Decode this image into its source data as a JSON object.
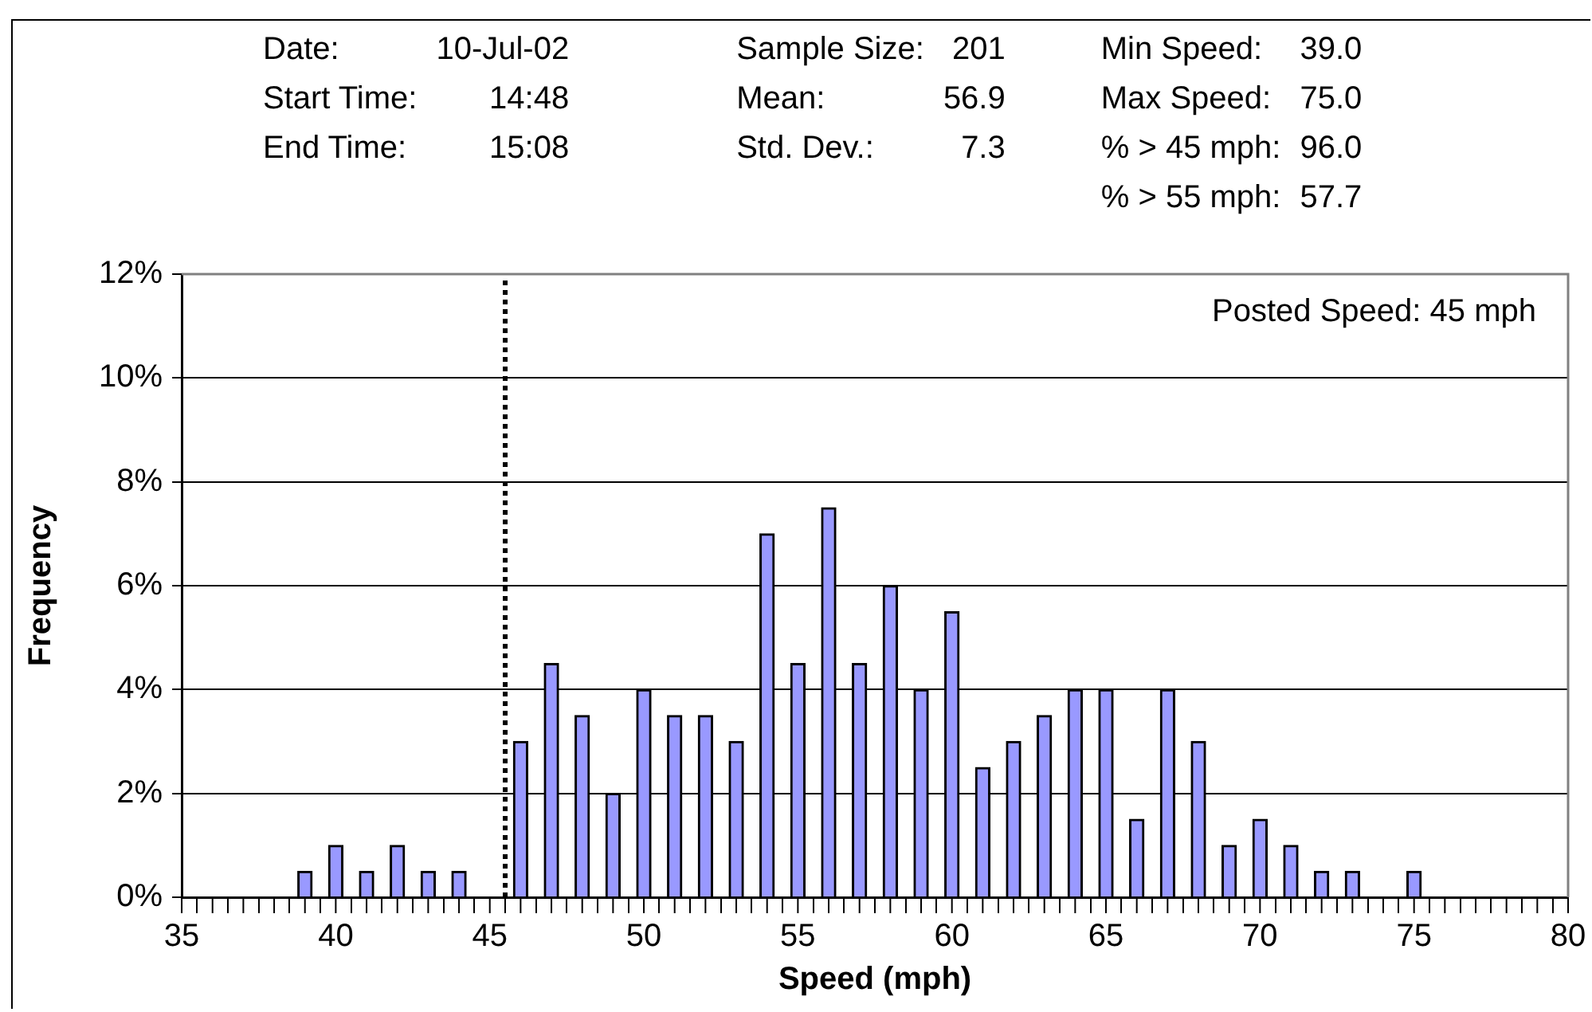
{
  "chart_data": {
    "type": "bar",
    "xlabel": "Speed (mph)",
    "ylabel": "Frequency",
    "color": "#9999ff",
    "x": [
      39,
      40,
      41,
      42,
      43,
      44,
      45,
      46,
      47,
      48,
      49,
      50,
      51,
      52,
      53,
      54,
      55,
      56,
      57,
      58,
      59,
      60,
      61,
      62,
      63,
      64,
      65,
      66,
      67,
      68,
      69,
      70,
      71,
      72,
      73,
      74,
      75
    ],
    "values": [
      0.5,
      1,
      0.5,
      1,
      0.5,
      0.5,
      0,
      3,
      4.5,
      3.5,
      2,
      4,
      3.5,
      3.5,
      3,
      7,
      4.5,
      7.5,
      4.5,
      6,
      4,
      5.5,
      2.5,
      3,
      3.5,
      4,
      4,
      1.5,
      4,
      3,
      1,
      1.5,
      1,
      0.5,
      0.5,
      0,
      0.5
    ],
    "xlim": [
      35,
      80
    ],
    "xticks": [
      35,
      {
        "value": 36,
        "label": null
      },
      {
        "value": 37,
        "label": null
      },
      {
        "value": 38,
        "label": null
      },
      {
        "value": 39,
        "label": null
      },
      40,
      {
        "value": 41,
        "label": null
      },
      {
        "value": 42,
        "label": null
      },
      {
        "value": 43,
        "label": null
      },
      {
        "value": 44,
        "label": null
      },
      45,
      {
        "value": 46,
        "label": null
      },
      {
        "value": 47,
        "label": null
      },
      {
        "value": 48,
        "label": null
      },
      {
        "value": 49,
        "label": null
      },
      50,
      {
        "value": 51,
        "label": null
      },
      {
        "value": 52,
        "label": null
      },
      {
        "value": 53,
        "label": null
      },
      {
        "value": 54,
        "label": null
      },
      55,
      {
        "value": 56,
        "label": null
      },
      {
        "value": 57,
        "label": null
      },
      {
        "value": 58,
        "label": null
      },
      {
        "value": 59,
        "label": null
      },
      60,
      {
        "value": 61,
        "label": null
      },
      {
        "value": 62,
        "label": null
      },
      {
        "value": 63,
        "label": null
      },
      {
        "value": 64,
        "label": null
      },
      65,
      {
        "value": 66,
        "label": null
      },
      {
        "value": 67,
        "label": null
      },
      {
        "value": 68,
        "label": null
      },
      {
        "value": 69,
        "label": null
      },
      70,
      {
        "value": 71,
        "label": null
      },
      {
        "value": 72,
        "label": null
      },
      {
        "value": 73,
        "label": null
      },
      {
        "value": 74,
        "label": null
      },
      75,
      {
        "value": 76,
        "label": null
      },
      {
        "value": 77,
        "label": null
      },
      {
        "value": 78,
        "label": null
      },
      {
        "value": 79,
        "label": null
      },
      80
    ],
    "ylim": [
      0,
      12
    ],
    "yticks": [
      {
        "value": 0,
        "label": "0%"
      },
      {
        "value": 2,
        "label": "2%"
      },
      {
        "value": 4,
        "label": "4%"
      },
      {
        "value": 6,
        "label": "6%"
      },
      {
        "value": 8,
        "label": "8%"
      },
      {
        "value": 10,
        "label": "10%"
      },
      {
        "value": 12,
        "label": "12%"
      }
    ],
    "grid": "y",
    "ref_lines": [
      {
        "axis": "x",
        "value": 45.5,
        "label": "Posted Speed: 45 mph",
        "color": "#000000",
        "line_style": "dotted"
      }
    ],
    "annotations": [
      "Date:",
      "10-Jul-02",
      "Start Time:",
      "14:48",
      "End Time:",
      "15:08",
      "Sample Size:",
      "201",
      "Mean:",
      "56.9",
      "Std. Dev.:",
      "7.3",
      "Min Speed:",
      "39.0",
      "Max Speed:",
      "75.0",
      "% > 45 mph:",
      "96.0",
      "% > 55 mph:",
      "57.7"
    ]
  }
}
